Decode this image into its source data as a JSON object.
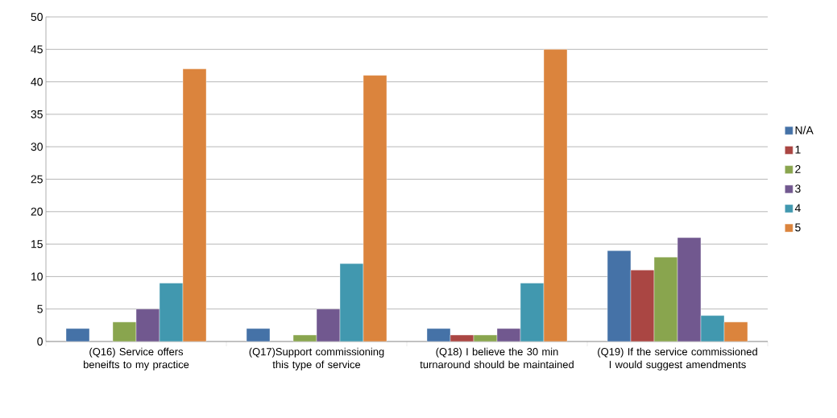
{
  "chart_data": {
    "type": "bar",
    "categories": [
      "(Q16) Service offers beneifts to my practice",
      "(Q17)Support commissioning this type of service",
      "(Q18) I believe the 30 min turnaround should be maintained",
      "(Q19) If the service commissioned I would suggest amendments"
    ],
    "series": [
      {
        "name": "N/A",
        "color": "#4572a7",
        "values": [
          2,
          2,
          2,
          14
        ]
      },
      {
        "name": "1",
        "color": "#aa4643",
        "values": [
          null,
          null,
          1,
          11
        ]
      },
      {
        "name": "2",
        "color": "#89a54e",
        "values": [
          3,
          1,
          1,
          13
        ]
      },
      {
        "name": "3",
        "color": "#71588f",
        "values": [
          5,
          5,
          2,
          16
        ]
      },
      {
        "name": "4",
        "color": "#4198af",
        "values": [
          9,
          12,
          9,
          4
        ]
      },
      {
        "name": "5",
        "color": "#db843d",
        "values": [
          42,
          41,
          45,
          3
        ]
      }
    ],
    "ylim": [
      0,
      50
    ],
    "yticks": [
      0,
      5,
      10,
      15,
      20,
      25,
      30,
      35,
      40,
      45,
      50
    ],
    "grid": "y",
    "legend": "right"
  }
}
